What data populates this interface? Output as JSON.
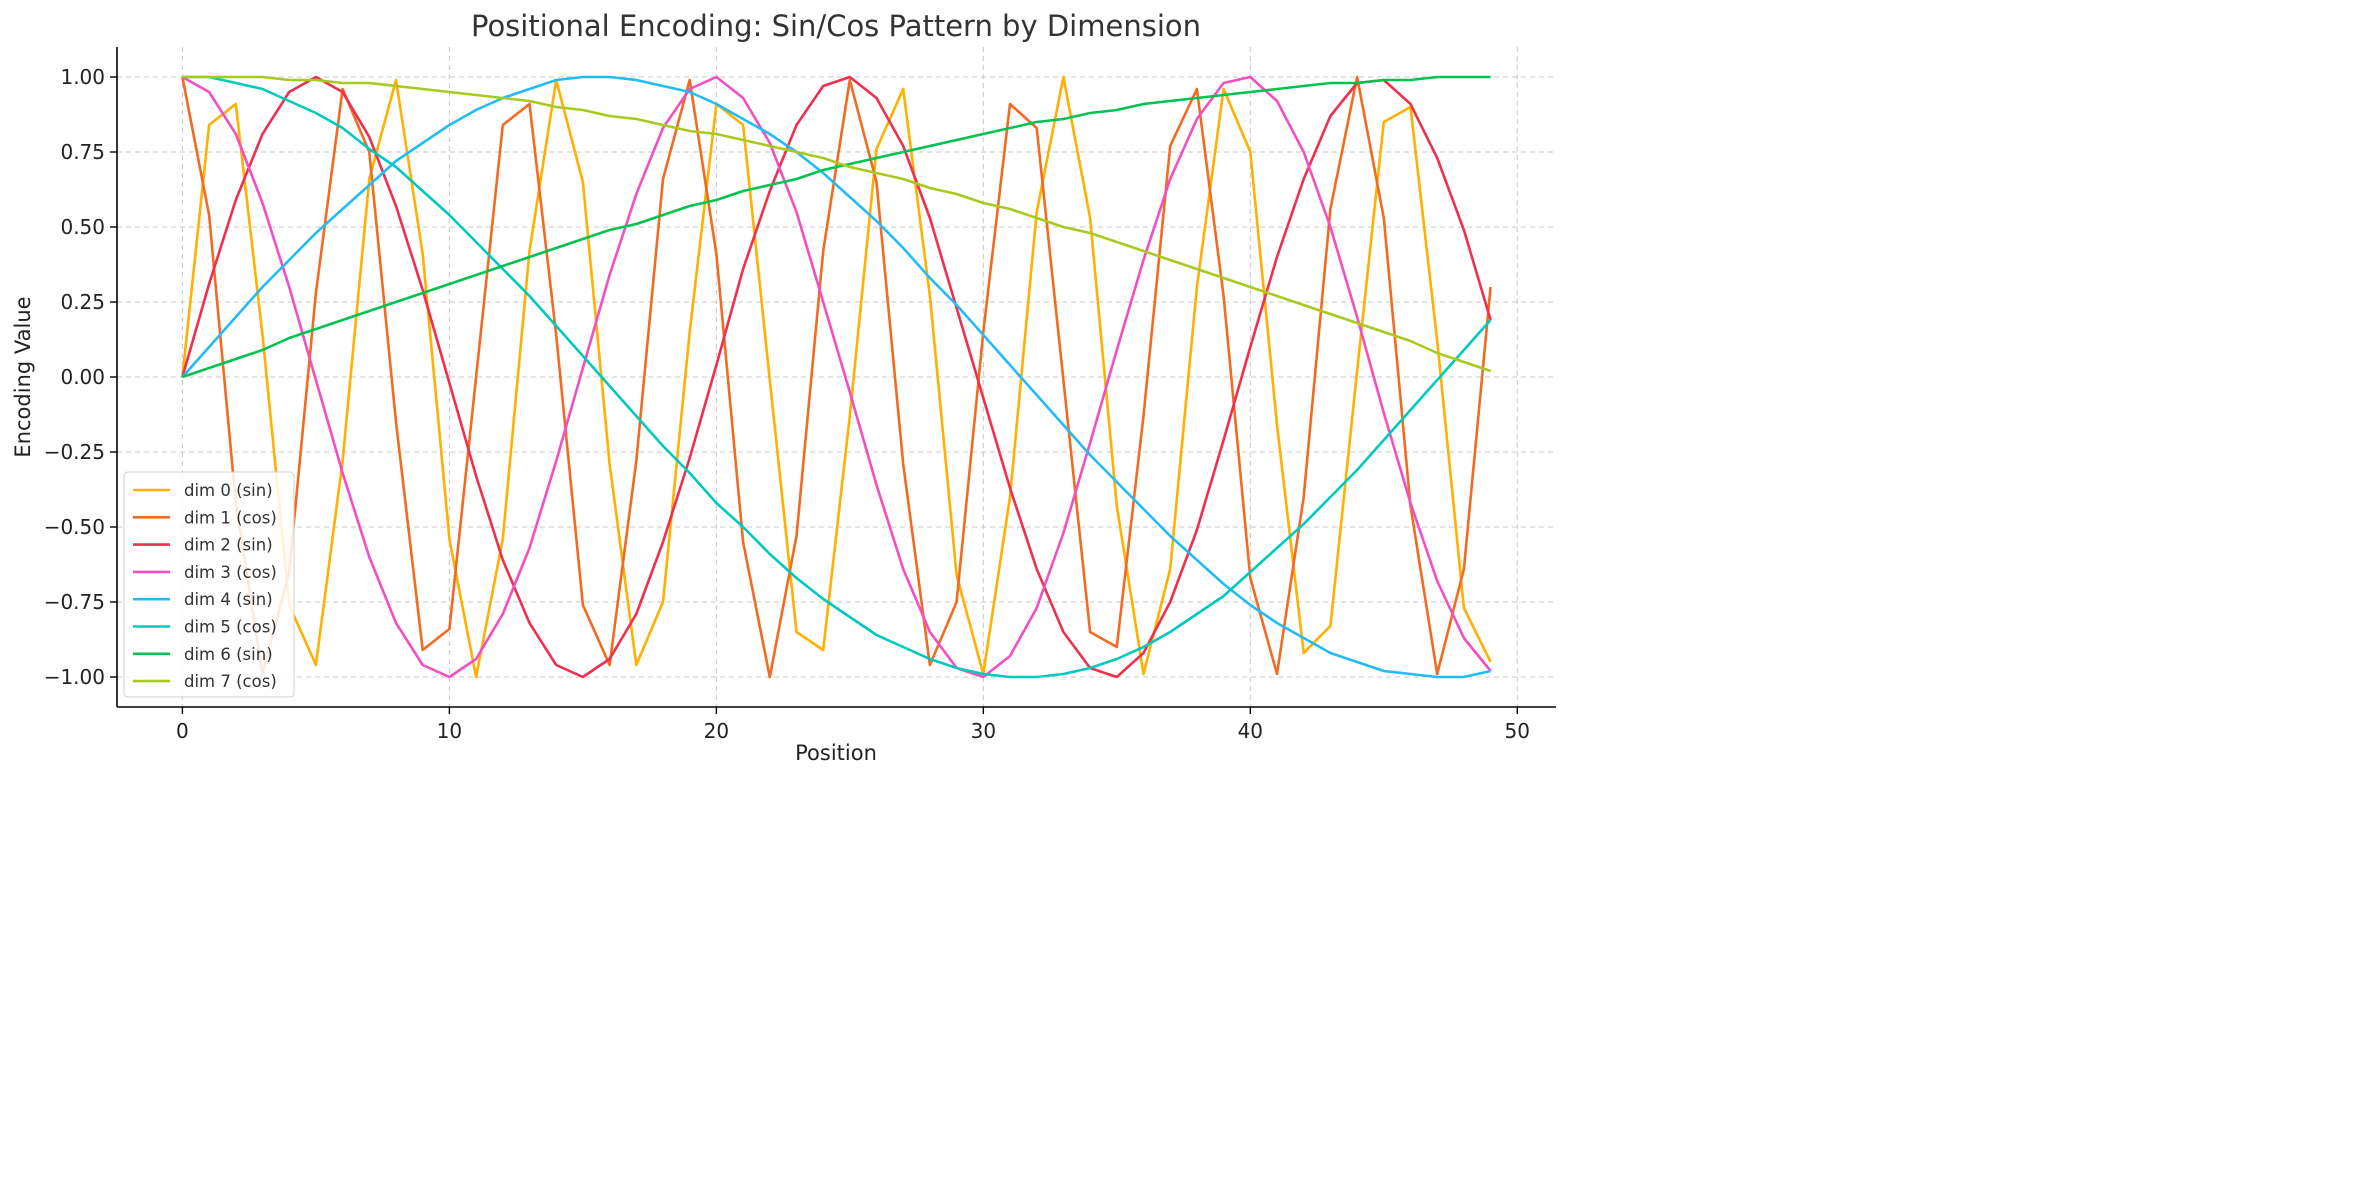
{
  "chart_data": {
    "type": "line",
    "title": "Positional Encoding: Sin/Cos Pattern by Dimension",
    "xlabel": "Position",
    "ylabel": "Encoding Value",
    "xlim": [
      -2.45,
      51.45
    ],
    "ylim": [
      -1.1,
      1.1
    ],
    "xticks": [
      0,
      10,
      20,
      30,
      40,
      50
    ],
    "xtick_labels": [
      "0",
      "10",
      "20",
      "30",
      "40",
      "50"
    ],
    "yticks": [
      1.0,
      0.75,
      0.5,
      0.25,
      0.0,
      -0.25,
      -0.5,
      -0.75,
      -1.0
    ],
    "ytick_labels": [
      "1.00",
      "0.75",
      "0.50",
      "0.25",
      "0.00",
      "−0.25",
      "−0.50",
      "−0.75",
      "−1.00"
    ],
    "grid": true,
    "legend_position": "bottom-left",
    "x": [
      0,
      1,
      2,
      3,
      4,
      5,
      6,
      7,
      8,
      9,
      10,
      11,
      12,
      13,
      14,
      15,
      16,
      17,
      18,
      19,
      20,
      21,
      22,
      23,
      24,
      25,
      26,
      27,
      28,
      29,
      30,
      31,
      32,
      33,
      34,
      35,
      36,
      37,
      38,
      39,
      40,
      41,
      42,
      43,
      44,
      45,
      46,
      47,
      48,
      49
    ],
    "series": [
      {
        "name": "dim 0 (sin)",
        "color": "#FFB000",
        "values": [
          0,
          0.84,
          0.91,
          0.14,
          -0.76,
          -0.96,
          -0.28,
          0.66,
          0.99,
          0.41,
          -0.54,
          -1.0,
          -0.54,
          0.42,
          0.99,
          0.65,
          -0.29,
          -0.96,
          -0.75,
          0.15,
          0.91,
          0.84,
          -0.01,
          -0.85,
          -0.91,
          -0.13,
          0.76,
          0.96,
          0.27,
          -0.66,
          -0.99,
          -0.4,
          0.55,
          1.0,
          0.53,
          -0.43,
          -0.99,
          -0.64,
          0.3,
          0.96,
          0.75,
          -0.16,
          -0.92,
          -0.83,
          0.02,
          0.85,
          0.9,
          0.12,
          -0.77,
          -0.95
        ]
      },
      {
        "name": "dim 1 (cos)",
        "color": "#F26B21",
        "values": [
          1,
          0.54,
          -0.42,
          -0.99,
          -0.65,
          0.28,
          0.96,
          0.75,
          -0.15,
          -0.91,
          -0.84,
          0.0,
          0.84,
          0.91,
          0.14,
          -0.76,
          -0.96,
          -0.28,
          0.66,
          0.99,
          0.41,
          -0.55,
          -1.0,
          -0.53,
          0.42,
          0.99,
          0.65,
          -0.29,
          -0.96,
          -0.75,
          0.15,
          0.91,
          0.83,
          -0.01,
          -0.85,
          -0.9,
          -0.13,
          0.77,
          0.96,
          0.27,
          -0.67,
          -0.99,
          -0.4,
          0.56,
          1.0,
          0.53,
          -0.43,
          -0.99,
          -0.64,
          0.3
        ]
      },
      {
        "name": "dim 2 (sin)",
        "color": "#EE2F4E",
        "values": [
          0,
          0.31,
          0.59,
          0.81,
          0.95,
          1.0,
          0.95,
          0.8,
          0.57,
          0.29,
          -0.02,
          -0.33,
          -0.61,
          -0.82,
          -0.96,
          -1.0,
          -0.94,
          -0.79,
          -0.55,
          -0.27,
          0.04,
          0.36,
          0.62,
          0.84,
          0.97,
          1.0,
          0.93,
          0.77,
          0.53,
          0.23,
          -0.07,
          -0.37,
          -0.64,
          -0.85,
          -0.97,
          -1.0,
          -0.92,
          -0.75,
          -0.51,
          -0.21,
          0.1,
          0.4,
          0.66,
          0.87,
          0.98,
          0.99,
          0.91,
          0.73,
          0.49,
          0.19
        ]
      },
      {
        "name": "dim 3 (cos)",
        "color": "#F24FC2",
        "values": [
          1,
          0.95,
          0.81,
          0.58,
          0.3,
          -0.01,
          -0.32,
          -0.6,
          -0.82,
          -0.96,
          -1.0,
          -0.94,
          -0.79,
          -0.57,
          -0.28,
          0.03,
          0.34,
          0.61,
          0.83,
          0.96,
          1.0,
          0.93,
          0.78,
          0.55,
          0.25,
          -0.05,
          -0.36,
          -0.64,
          -0.85,
          -0.97,
          -1.0,
          -0.93,
          -0.77,
          -0.52,
          -0.22,
          0.09,
          0.39,
          0.66,
          0.86,
          0.98,
          1.0,
          0.92,
          0.75,
          0.5,
          0.2,
          -0.12,
          -0.42,
          -0.68,
          -0.87,
          -0.98
        ]
      },
      {
        "name": "dim 4 (sin)",
        "color": "#22BBF5",
        "values": [
          0,
          0.1,
          0.2,
          0.3,
          0.39,
          0.48,
          0.56,
          0.64,
          0.72,
          0.78,
          0.84,
          0.89,
          0.93,
          0.96,
          0.99,
          1.0,
          1.0,
          0.99,
          0.97,
          0.95,
          0.91,
          0.86,
          0.81,
          0.75,
          0.68,
          0.6,
          0.52,
          0.43,
          0.33,
          0.24,
          0.14,
          0.04,
          -0.06,
          -0.16,
          -0.26,
          -0.35,
          -0.44,
          -0.53,
          -0.61,
          -0.69,
          -0.76,
          -0.82,
          -0.87,
          -0.92,
          -0.95,
          -0.98,
          -0.99,
          -1.0,
          -1.0,
          -0.98
        ]
      },
      {
        "name": "dim 5 (cos)",
        "color": "#00C9BE",
        "values": [
          1,
          1.0,
          0.98,
          0.96,
          0.92,
          0.88,
          0.83,
          0.76,
          0.7,
          0.62,
          0.54,
          0.45,
          0.36,
          0.27,
          0.17,
          0.07,
          -0.03,
          -0.13,
          -0.23,
          -0.32,
          -0.42,
          -0.5,
          -0.59,
          -0.67,
          -0.74,
          -0.8,
          -0.86,
          -0.9,
          -0.94,
          -0.97,
          -0.99,
          -1.0,
          -1.0,
          -0.99,
          -0.97,
          -0.94,
          -0.9,
          -0.85,
          -0.79,
          -0.73,
          -0.65,
          -0.57,
          -0.49,
          -0.4,
          -0.31,
          -0.21,
          -0.11,
          -0.01,
          0.09,
          0.19
        ]
      },
      {
        "name": "dim 6 (sin)",
        "color": "#00C251",
        "values": [
          0,
          0.03,
          0.06,
          0.09,
          0.13,
          0.16,
          0.19,
          0.22,
          0.25,
          0.28,
          0.31,
          0.34,
          0.37,
          0.4,
          0.43,
          0.46,
          0.49,
          0.51,
          0.54,
          0.57,
          0.59,
          0.62,
          0.64,
          0.66,
          0.69,
          0.71,
          0.73,
          0.75,
          0.77,
          0.79,
          0.81,
          0.83,
          0.85,
          0.86,
          0.88,
          0.89,
          0.91,
          0.92,
          0.93,
          0.94,
          0.95,
          0.96,
          0.97,
          0.98,
          0.98,
          0.99,
          0.99,
          1.0,
          1.0,
          1.0
        ]
      },
      {
        "name": "dim 7 (cos)",
        "color": "#A8C91E",
        "values": [
          1,
          1.0,
          1.0,
          1.0,
          0.99,
          0.99,
          0.98,
          0.98,
          0.97,
          0.96,
          0.95,
          0.94,
          0.93,
          0.92,
          0.9,
          0.89,
          0.87,
          0.86,
          0.84,
          0.82,
          0.81,
          0.79,
          0.77,
          0.75,
          0.73,
          0.7,
          0.68,
          0.66,
          0.63,
          0.61,
          0.58,
          0.56,
          0.53,
          0.5,
          0.48,
          0.45,
          0.42,
          0.39,
          0.36,
          0.33,
          0.3,
          0.27,
          0.24,
          0.21,
          0.18,
          0.15,
          0.12,
          0.08,
          0.05,
          0.02
        ]
      }
    ]
  }
}
